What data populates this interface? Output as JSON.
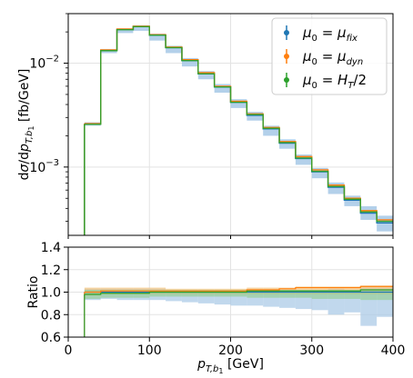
{
  "chart_data": [
    {
      "type": "line",
      "panel": "main",
      "ylabel": "dσ/dp_{T,b1} [fb/GeV]",
      "yscale": "log",
      "ylim": [
        0.00022,
        0.03
      ],
      "xlim": [
        0,
        400
      ],
      "yticks": [
        {
          "value": 0.01,
          "base": "10",
          "exp": "−2"
        },
        {
          "value": 0.001,
          "base": "10",
          "exp": "−3"
        }
      ],
      "bin_edges": [
        20,
        40,
        60,
        80,
        100,
        120,
        140,
        160,
        180,
        200,
        220,
        240,
        260,
        280,
        300,
        320,
        340,
        360,
        380,
        400
      ],
      "band": {
        "color": "#a6c8e6",
        "lower": [
          0.0025,
          0.0125,
          0.0195,
          0.0205,
          0.0165,
          0.0125,
          0.0093,
          0.007,
          0.0052,
          0.0037,
          0.0028,
          0.002,
          0.0015,
          0.00105,
          0.00078,
          0.00055,
          0.00042,
          0.00031,
          0.00024
        ],
        "upper": [
          0.0027,
          0.0137,
          0.0217,
          0.0232,
          0.0193,
          0.0147,
          0.0112,
          0.0084,
          0.0063,
          0.0045,
          0.0034,
          0.0025,
          0.00185,
          0.00132,
          0.00098,
          0.00071,
          0.00053,
          0.00042,
          0.00034
        ]
      },
      "series": [
        {
          "label": "μ_0 = μ_fix",
          "color": "#1f77b4",
          "values": [
            0.00262,
            0.0133,
            0.0211,
            0.0225,
            0.0186,
            0.0141,
            0.0106,
            0.0079,
            0.0059,
            0.0042,
            0.00315,
            0.00233,
            0.0017,
            0.00121,
            0.0009,
            0.00064,
            0.00048,
            0.00036,
            0.00029
          ]
        },
        {
          "label": "μ_0 = μ_dyn",
          "color": "#ff7f0e",
          "values": [
            0.00262,
            0.0134,
            0.0213,
            0.0227,
            0.0188,
            0.0143,
            0.0108,
            0.0081,
            0.006,
            0.0043,
            0.00325,
            0.0024,
            0.00176,
            0.00126,
            0.00094,
            0.00067,
            0.0005,
            0.00038,
            0.00031
          ]
        },
        {
          "label": "μ_0 = H_T/2",
          "color": "#2ca02c",
          "values": [
            0.00258,
            0.0132,
            0.021,
            0.0225,
            0.0186,
            0.0141,
            0.0106,
            0.0079,
            0.0059,
            0.0042,
            0.0032,
            0.00236,
            0.00172,
            0.00122,
            0.00091,
            0.00065,
            0.00049,
            0.00037,
            0.0003
          ]
        }
      ]
    },
    {
      "type": "line",
      "panel": "ratio",
      "ylabel": "Ratio",
      "xlabel": "p_{T,b1} [GeV]",
      "ylim": [
        0.6,
        1.4
      ],
      "xlim": [
        0,
        400
      ],
      "yticks": [
        "0.6",
        "0.8",
        "1.0",
        "1.2",
        "1.4"
      ],
      "xticks": [
        "0",
        "100",
        "200",
        "300",
        "400"
      ],
      "bin_edges": [
        20,
        40,
        60,
        80,
        100,
        120,
        140,
        160,
        180,
        200,
        220,
        240,
        260,
        280,
        300,
        320,
        340,
        360,
        380,
        400
      ],
      "bands": [
        {
          "color": "#a6c8e6",
          "name": "fix",
          "lower": [
            0.93,
            0.94,
            0.93,
            0.93,
            0.93,
            0.92,
            0.91,
            0.9,
            0.89,
            0.88,
            0.88,
            0.87,
            0.86,
            0.85,
            0.84,
            0.8,
            0.82,
            0.7,
            0.78
          ],
          "upper": [
            1.03,
            1.03,
            1.03,
            1.03,
            1.03,
            1.02,
            1.02,
            1.02,
            1.02,
            1.02,
            1.02,
            1.02,
            1.02,
            1.02,
            1.02,
            1.03,
            1.02,
            1.04,
            1.04
          ]
        },
        {
          "color": "#f2c27a",
          "name": "dyn",
          "lower": [
            0.97,
            0.98,
            0.98,
            0.98,
            0.98,
            0.98,
            0.98,
            0.98,
            0.98,
            0.98,
            0.98,
            0.98,
            0.98,
            0.98,
            0.98,
            0.98,
            0.98,
            0.98,
            0.98
          ],
          "upper": [
            1.04,
            1.04,
            1.04,
            1.04,
            1.04,
            1.03,
            1.03,
            1.03,
            1.03,
            1.03,
            1.04,
            1.04,
            1.04,
            1.05,
            1.05,
            1.05,
            1.05,
            1.06,
            1.06
          ]
        },
        {
          "color": "#98cf98",
          "name": "ht",
          "lower": [
            0.94,
            0.95,
            0.95,
            0.95,
            0.96,
            0.96,
            0.96,
            0.96,
            0.96,
            0.96,
            0.95,
            0.95,
            0.95,
            0.95,
            0.94,
            0.94,
            0.94,
            0.93,
            0.93
          ],
          "upper": [
            1.02,
            1.02,
            1.02,
            1.02,
            1.02,
            1.02,
            1.02,
            1.02,
            1.02,
            1.02,
            1.02,
            1.02,
            1.02,
            1.02,
            1.02,
            1.02,
            1.02,
            1.02,
            1.02
          ]
        }
      ],
      "series": [
        {
          "color": "#1f77b4",
          "values": [
            1.0,
            1.0,
            1.0,
            1.0,
            1.0,
            1.0,
            1.0,
            1.0,
            1.0,
            1.0,
            1.0,
            1.0,
            1.0,
            1.0,
            1.0,
            1.0,
            1.0,
            1.0,
            1.0
          ]
        },
        {
          "color": "#ff7f0e",
          "values": [
            1.0,
            1.01,
            1.01,
            1.01,
            1.01,
            1.01,
            1.01,
            1.01,
            1.01,
            1.01,
            1.02,
            1.02,
            1.03,
            1.04,
            1.04,
            1.04,
            1.04,
            1.05,
            1.05
          ]
        },
        {
          "color": "#2ca02c",
          "values": [
            0.98,
            0.99,
            0.99,
            0.99,
            1.0,
            1.0,
            1.0,
            1.0,
            1.0,
            1.0,
            1.01,
            1.01,
            1.01,
            1.01,
            1.01,
            1.01,
            1.01,
            1.02,
            1.02
          ]
        }
      ]
    }
  ],
  "legend": {
    "placement": "top-right",
    "entries": [
      {
        "lhs": "μ",
        "lhs_sub": "0",
        "rhs": "μ",
        "rhs_sub": "fix",
        "color": "#1f77b4"
      },
      {
        "lhs": "μ",
        "lhs_sub": "0",
        "rhs": "μ",
        "rhs_sub": "dyn",
        "color": "#ff7f0e"
      },
      {
        "lhs": "μ",
        "lhs_sub": "0",
        "rhs": "H",
        "rhs_sub": "T",
        "rhs_tail": "/2",
        "color": "#2ca02c"
      }
    ]
  }
}
